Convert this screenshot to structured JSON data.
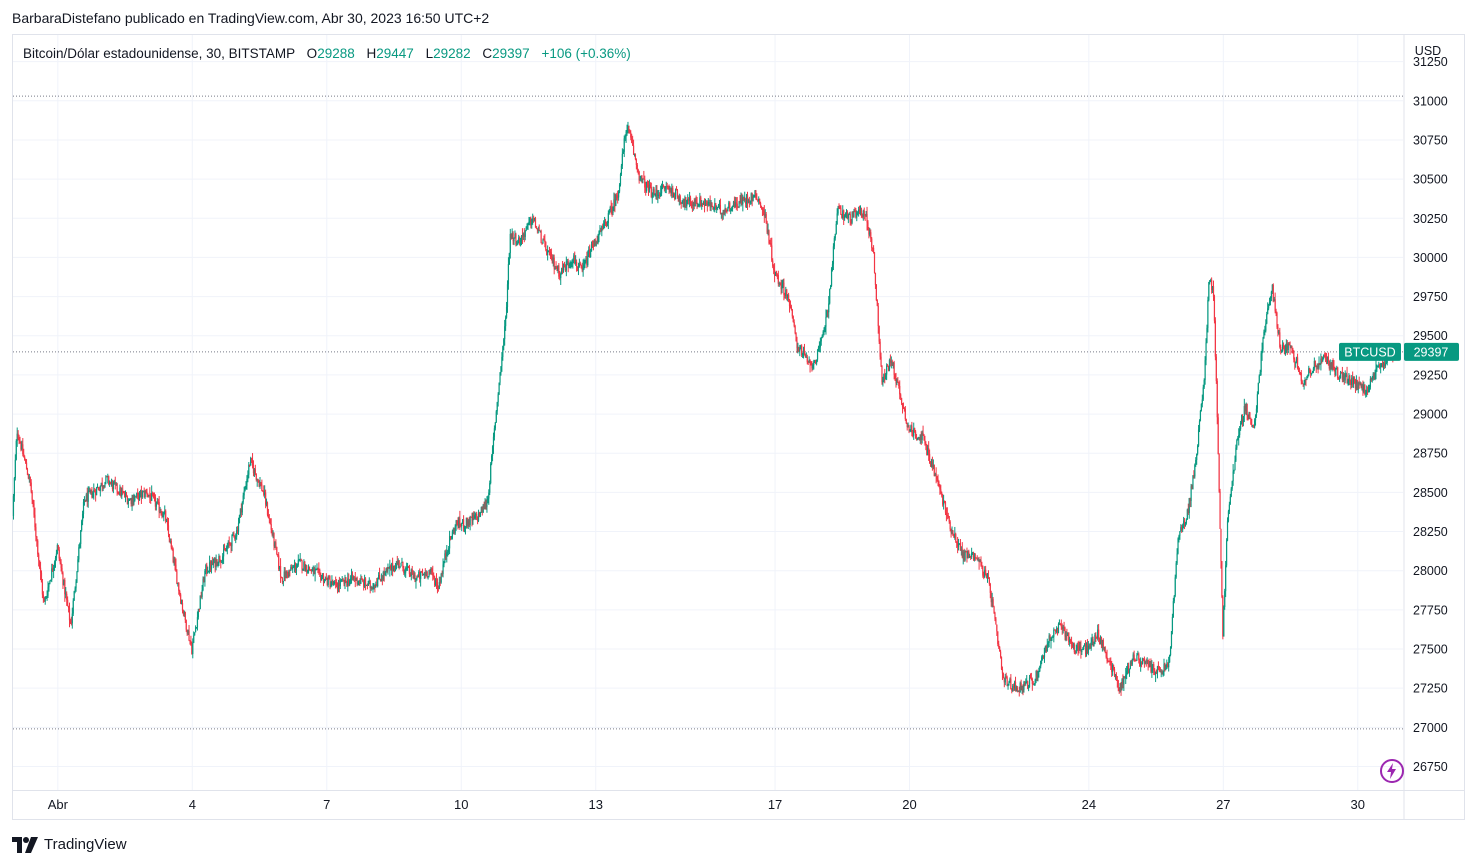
{
  "header": {
    "published_line": "BarbaraDistefano publicado en TradingView.com, Abr 30, 2023 16:50 UTC+2"
  },
  "legend": {
    "symbol": "Bitcoin/Dólar estadounidense, 30, BITSTAMP",
    "o_label": "O",
    "o_value": "29288",
    "h_label": "H",
    "h_value": "29447",
    "l_label": "L",
    "l_value": "29282",
    "c_label": "C",
    "c_value": "29397",
    "change": "+106 (+0.36%)"
  },
  "footer": {
    "brand": "TradingView"
  },
  "colors": {
    "up": "#089981",
    "down": "#f23645",
    "grid": "#f0f3fa",
    "text": "#131722"
  },
  "chart_data": {
    "type": "candlestick",
    "currency": "USD",
    "ticker_label": "BTCUSD",
    "last_price": 29397,
    "ylim": [
      26600,
      31420
    ],
    "y_ticks": [
      31250,
      31000,
      30750,
      30500,
      30250,
      30000,
      29750,
      29500,
      29250,
      29000,
      28750,
      28500,
      28250,
      28000,
      27750,
      27500,
      27250,
      27000,
      26750
    ],
    "x_range_days": [
      0,
      30.83
    ],
    "x_ticks": [
      {
        "day": 1.0,
        "label": "Abr"
      },
      {
        "day": 4.0,
        "label": "4"
      },
      {
        "day": 7.0,
        "label": "7"
      },
      {
        "day": 10.0,
        "label": "10"
      },
      {
        "day": 13.0,
        "label": "13"
      },
      {
        "day": 17.0,
        "label": "17"
      },
      {
        "day": 20.0,
        "label": "20"
      },
      {
        "day": 24.0,
        "label": "24"
      },
      {
        "day": 27.0,
        "label": "27"
      },
      {
        "day": 30.0,
        "label": "30"
      }
    ],
    "ref_lines": [
      31030,
      29397,
      26990
    ],
    "price_path": [
      [
        0.0,
        28350
      ],
      [
        0.1,
        28900
      ],
      [
        0.4,
        28550
      ],
      [
        0.7,
        27780
      ],
      [
        1.0,
        28150
      ],
      [
        1.3,
        27650
      ],
      [
        1.6,
        28450
      ],
      [
        2.1,
        28580
      ],
      [
        2.6,
        28450
      ],
      [
        3.0,
        28500
      ],
      [
        3.4,
        28350
      ],
      [
        3.8,
        27750
      ],
      [
        4.0,
        27500
      ],
      [
        4.3,
        28000
      ],
      [
        4.7,
        28100
      ],
      [
        5.0,
        28250
      ],
      [
        5.3,
        28700
      ],
      [
        5.6,
        28500
      ],
      [
        6.0,
        27950
      ],
      [
        6.4,
        28050
      ],
      [
        6.8,
        27980
      ],
      [
        7.2,
        27900
      ],
      [
        7.6,
        27950
      ],
      [
        8.0,
        27900
      ],
      [
        8.3,
        27980
      ],
      [
        8.6,
        28050
      ],
      [
        9.0,
        27950
      ],
      [
        9.3,
        28000
      ],
      [
        9.5,
        27900
      ],
      [
        9.7,
        28150
      ],
      [
        9.9,
        28300
      ],
      [
        10.1,
        28300
      ],
      [
        10.4,
        28350
      ],
      [
        10.6,
        28450
      ],
      [
        10.8,
        29050
      ],
      [
        11.0,
        29600
      ],
      [
        11.1,
        30150
      ],
      [
        11.3,
        30100
      ],
      [
        11.6,
        30250
      ],
      [
        11.9,
        30050
      ],
      [
        12.2,
        29900
      ],
      [
        12.5,
        30000
      ],
      [
        12.7,
        29900
      ],
      [
        12.9,
        30050
      ],
      [
        13.2,
        30200
      ],
      [
        13.5,
        30400
      ],
      [
        13.7,
        30850
      ],
      [
        14.0,
        30500
      ],
      [
        14.3,
        30400
      ],
      [
        14.6,
        30450
      ],
      [
        15.0,
        30350
      ],
      [
        15.4,
        30350
      ],
      [
        15.8,
        30300
      ],
      [
        16.2,
        30350
      ],
      [
        16.6,
        30400
      ],
      [
        16.8,
        30250
      ],
      [
        17.0,
        29900
      ],
      [
        17.3,
        29750
      ],
      [
        17.5,
        29450
      ],
      [
        17.8,
        29300
      ],
      [
        18.0,
        29400
      ],
      [
        18.2,
        29700
      ],
      [
        18.4,
        30300
      ],
      [
        18.7,
        30250
      ],
      [
        19.0,
        30300
      ],
      [
        19.2,
        30050
      ],
      [
        19.4,
        29200
      ],
      [
        19.6,
        29350
      ],
      [
        20.0,
        28900
      ],
      [
        20.3,
        28850
      ],
      [
        20.6,
        28600
      ],
      [
        20.9,
        28300
      ],
      [
        21.2,
        28100
      ],
      [
        21.5,
        28100
      ],
      [
        21.8,
        27900
      ],
      [
        22.1,
        27300
      ],
      [
        22.4,
        27250
      ],
      [
        22.8,
        27300
      ],
      [
        23.1,
        27550
      ],
      [
        23.4,
        27650
      ],
      [
        23.7,
        27500
      ],
      [
        24.0,
        27500
      ],
      [
        24.2,
        27600
      ],
      [
        24.5,
        27400
      ],
      [
        24.7,
        27250
      ],
      [
        25.0,
        27450
      ],
      [
        25.3,
        27400
      ],
      [
        25.6,
        27350
      ],
      [
        25.8,
        27400
      ],
      [
        26.0,
        28200
      ],
      [
        26.2,
        28350
      ],
      [
        26.4,
        28700
      ],
      [
        26.6,
        29300
      ],
      [
        26.7,
        29900
      ],
      [
        26.8,
        29750
      ],
      [
        26.9,
        28700
      ],
      [
        27.0,
        27600
      ],
      [
        27.1,
        28300
      ],
      [
        27.3,
        28800
      ],
      [
        27.5,
        29050
      ],
      [
        27.7,
        28900
      ],
      [
        27.9,
        29500
      ],
      [
        28.1,
        29800
      ],
      [
        28.3,
        29400
      ],
      [
        28.5,
        29450
      ],
      [
        28.8,
        29200
      ],
      [
        29.0,
        29300
      ],
      [
        29.3,
        29350
      ],
      [
        29.6,
        29250
      ],
      [
        29.9,
        29200
      ],
      [
        30.2,
        29150
      ],
      [
        30.5,
        29300
      ],
      [
        30.83,
        29397
      ]
    ]
  }
}
